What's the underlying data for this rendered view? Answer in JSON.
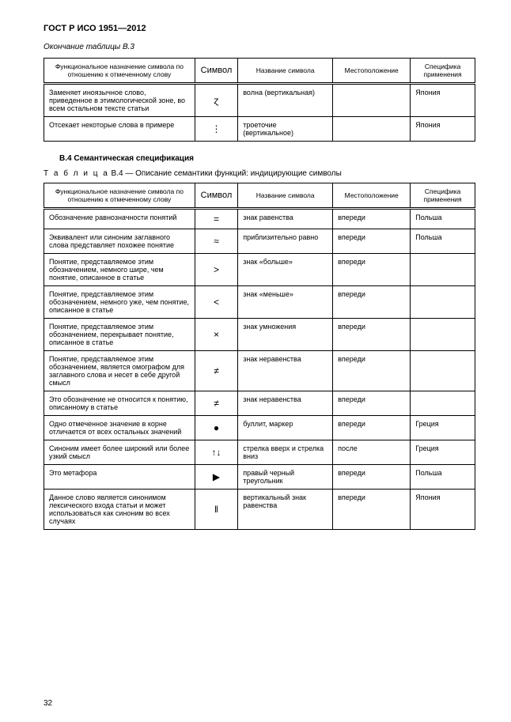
{
  "doc_title": "ГОСТ Р ИСО 1951—2012",
  "caption_b3": "Окончание таблицы В.3",
  "headers": {
    "func": "Функциональное назначение символа по отношению к отмеченному слову",
    "sym": "Символ",
    "name": "Название символа",
    "loc": "Местоположение",
    "spec": "Специфика применения"
  },
  "b3_rows": [
    {
      "func": "Заменяет иноязычное слово, приведенное в этимологической зоне, во всем остальном тексте статьи",
      "sym": "ɀ",
      "name": "волна (вертикальная)",
      "loc": "",
      "spec": "Япония"
    },
    {
      "func": "Отсекает некоторые слова в примере",
      "sym": "⋮",
      "name": "троеточие (вертикальное)",
      "loc": "",
      "spec": "Япония"
    }
  ],
  "section_b4": "В.4 Семантическая спецификация",
  "label_b4_prefix": "Т а б л и ц а",
  "label_b4_rest": "  В.4 — Описание семантики функций: индицирующие символы",
  "b4_rows": [
    {
      "func": "Обозначение равнозначности понятий",
      "sym": "=",
      "name": "знак равенства",
      "loc": "впереди",
      "spec": "Польша"
    },
    {
      "func": "Эквивалент или синоним заглавного слова представляет похожее понятие",
      "sym": "≈",
      "name": "приблизительно равно",
      "loc": "впереди",
      "spec": "Польша"
    },
    {
      "func": "Понятие, представляемое этим обозначением, немного шире, чем понятие, описанное в статье",
      "sym": ">",
      "name": "знак «больше»",
      "loc": "впереди",
      "spec": ""
    },
    {
      "func": "Понятие, представляемое этим обозначением, немного уже, чем понятие, описанное в статье",
      "sym": "<",
      "name": "знак «меньше»",
      "loc": "впереди",
      "spec": ""
    },
    {
      "func": "Понятие, представляемое этим обозначением, перекрывает понятие, описанное в статье",
      "sym": "×",
      "name": "знак умножения",
      "loc": "впереди",
      "spec": ""
    },
    {
      "func": "Понятие, представляемое этим обозначением, является омографом для заглавного слова и несет в себе другой смысл",
      "sym": "≠",
      "name": "знак неравенства",
      "loc": "впереди",
      "spec": ""
    },
    {
      "func": "Это обозначение не относится к понятию, описанному в статье",
      "sym": "≠",
      "name": "знак неравенства",
      "loc": "впереди",
      "spec": ""
    },
    {
      "func": "Одно отмеченное значение в корне отличается от всех остальных значений",
      "sym": "●",
      "name": "буллит, маркер",
      "loc": "впереди",
      "spec": "Греция"
    },
    {
      "func": "Синоним имеет более широкий или более узкий смысл",
      "sym": "↑↓",
      "name": "стрелка вверх и стрелка вниз",
      "loc": "после",
      "spec": "Греция"
    },
    {
      "func": "Это метафора",
      "sym": "▶",
      "name": "правый черный треугольник",
      "loc": "впереди",
      "spec": "Польша"
    },
    {
      "func": "Данное слово является синонимом лексического входа статьи и может использоваться как синоним во всех случаях",
      "sym": "‖",
      "name": "вертикальный знак равенства",
      "loc": "впереди",
      "spec": "Япония"
    }
  ],
  "page_number": "32"
}
